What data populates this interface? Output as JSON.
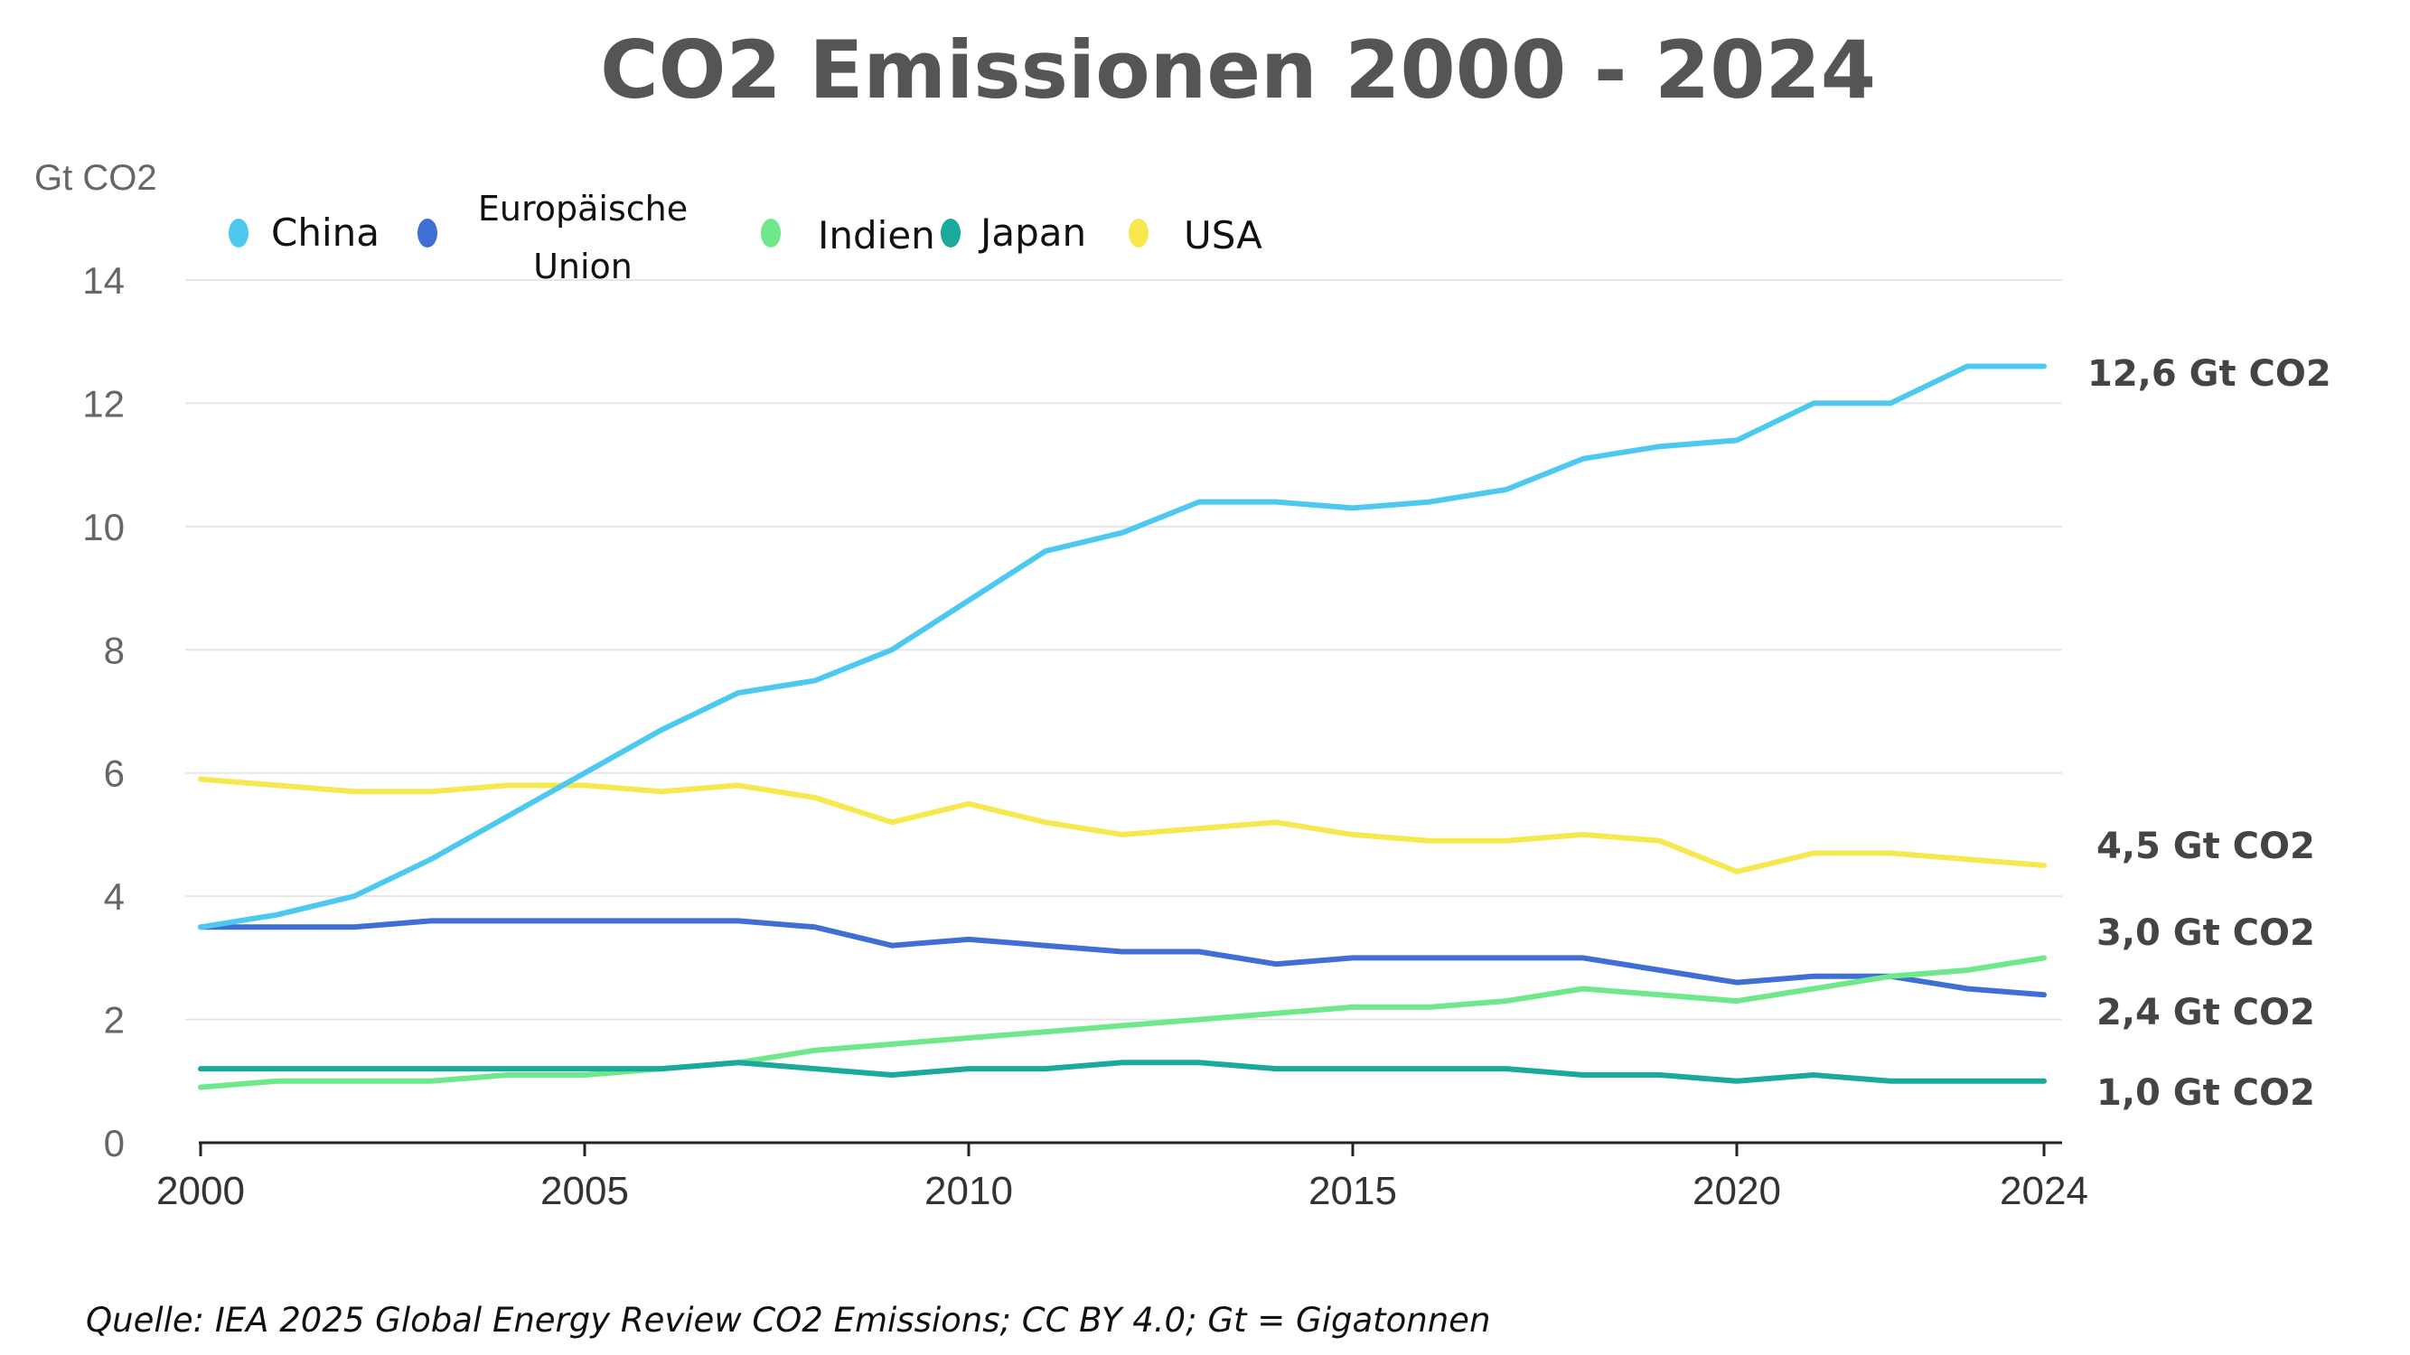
{
  "chart_data": {
    "type": "line",
    "title": "CO2 Emissionen 2000 - 2024",
    "ylabel": "Gt CO2",
    "xlabel": "",
    "xlim": [
      2000,
      2024
    ],
    "ylim": [
      0,
      14
    ],
    "grid": true,
    "legend_position": "top-left",
    "x_ticks": [
      "2000",
      "2005",
      "2010",
      "2015",
      "2020",
      "2024"
    ],
    "y_ticks": [
      "0",
      "2",
      "4",
      "6",
      "8",
      "10",
      "12",
      "14"
    ],
    "x": [
      2000,
      2001,
      2002,
      2003,
      2004,
      2005,
      2006,
      2007,
      2008,
      2009,
      2010,
      2011,
      2012,
      2013,
      2014,
      2015,
      2016,
      2017,
      2018,
      2019,
      2020,
      2021,
      2022,
      2023,
      2024
    ],
    "series": [
      {
        "name": "China",
        "color": "#4dc9f0",
        "values": [
          3.5,
          3.7,
          4.0,
          4.6,
          5.3,
          6.0,
          6.7,
          7.3,
          7.5,
          8.0,
          8.8,
          9.6,
          9.9,
          10.4,
          10.4,
          10.3,
          10.4,
          10.6,
          11.1,
          11.3,
          11.4,
          12.0,
          12.0,
          12.6,
          12.6
        ]
      },
      {
        "name": "Europäische Union",
        "color": "#3f6fd4",
        "values": [
          3.5,
          3.5,
          3.5,
          3.6,
          3.6,
          3.6,
          3.6,
          3.6,
          3.5,
          3.2,
          3.3,
          3.2,
          3.1,
          3.1,
          2.9,
          3.0,
          3.0,
          3.0,
          3.0,
          2.8,
          2.6,
          2.7,
          2.7,
          2.5,
          2.4
        ]
      },
      {
        "name": "Indien",
        "color": "#6ee88a",
        "values": [
          0.9,
          1.0,
          1.0,
          1.0,
          1.1,
          1.1,
          1.2,
          1.3,
          1.5,
          1.6,
          1.7,
          1.8,
          1.9,
          2.0,
          2.1,
          2.2,
          2.2,
          2.3,
          2.5,
          2.4,
          2.3,
          2.5,
          2.7,
          2.8,
          3.0
        ]
      },
      {
        "name": "Japan",
        "color": "#1aa99a",
        "values": [
          1.2,
          1.2,
          1.2,
          1.2,
          1.2,
          1.2,
          1.2,
          1.3,
          1.2,
          1.1,
          1.2,
          1.2,
          1.3,
          1.3,
          1.2,
          1.2,
          1.2,
          1.2,
          1.1,
          1.1,
          1.0,
          1.1,
          1.0,
          1.0,
          1.0
        ]
      },
      {
        "name": "USA",
        "color": "#f7e84f",
        "values": [
          5.9,
          5.8,
          5.7,
          5.7,
          5.8,
          5.8,
          5.7,
          5.8,
          5.6,
          5.2,
          5.5,
          5.2,
          5.0,
          5.1,
          5.2,
          5.0,
          4.9,
          4.9,
          5.0,
          4.9,
          4.4,
          4.7,
          4.7,
          4.6,
          4.5
        ]
      }
    ],
    "end_labels": [
      "12,6 Gt CO2",
      "4,5 Gt CO2",
      "3,0 Gt CO2",
      "2,4 Gt CO2",
      "1,0 Gt CO2"
    ],
    "legend": {
      "china": "China",
      "eu_line1": "Europäische",
      "eu_line2": "Union",
      "indien": "Indien",
      "japan": "Japan",
      "usa": "USA"
    },
    "source": "Quelle: IEA 2025  Global Energy Review CO2 Emissions; CC BY 4.0;  Gt = Gigatonnen"
  }
}
